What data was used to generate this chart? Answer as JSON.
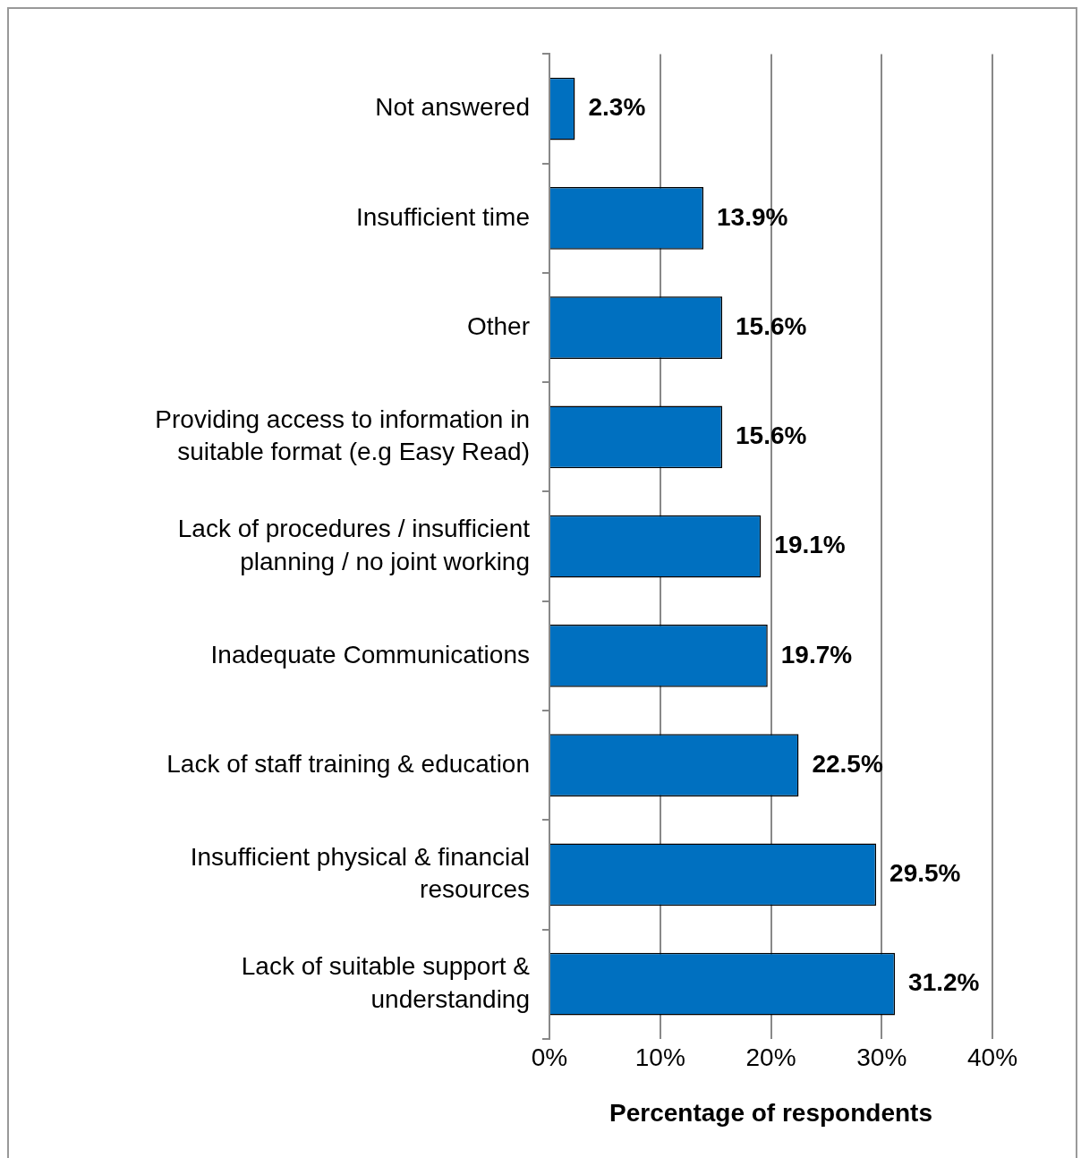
{
  "chart_data": {
    "type": "bar",
    "orientation": "horizontal",
    "xlabel": "Percentage of respondents",
    "categories": [
      "Not answered",
      "Insufficient time",
      "Other",
      "Providing access to information in suitable format (e.g Easy Read)",
      "Lack of procedures / insufficient planning / no joint working",
      "Inadequate Communications",
      "Lack of staff training & education",
      "Insufficient physical & financial resources",
      "Lack of suitable support & understanding"
    ],
    "values": [
      2.3,
      13.9,
      15.6,
      15.6,
      19.1,
      19.7,
      22.5,
      29.5,
      31.2
    ],
    "value_labels": [
      "2.3%",
      "13.9%",
      "15.6%",
      "15.6%",
      "19.1%",
      "19.7%",
      "22.5%",
      "29.5%",
      "31.2%"
    ],
    "color": "#0070c0",
    "xlim": [
      0,
      40
    ],
    "xticks": [
      {
        "value": 0,
        "label": "0%"
      },
      {
        "value": 10,
        "label": "10%"
      },
      {
        "value": 20,
        "label": "20%"
      },
      {
        "value": 30,
        "label": "30%"
      },
      {
        "value": 40,
        "label": "40%"
      }
    ],
    "grid": "x",
    "legend": false
  }
}
